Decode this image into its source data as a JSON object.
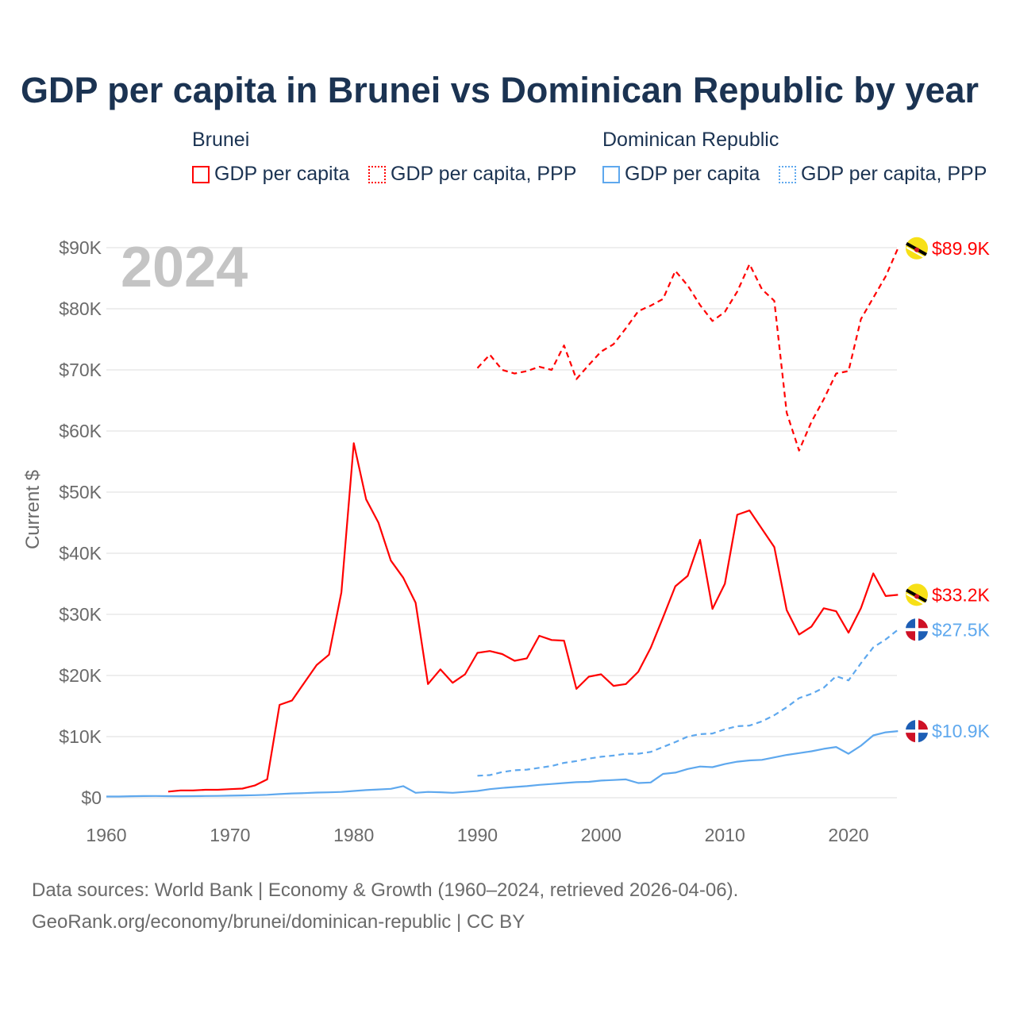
{
  "title": "GDP per capita in Brunei vs Dominican Republic by year",
  "year_watermark": "2024",
  "legend": {
    "groups": [
      {
        "name": "Brunei",
        "items": [
          "GDP per capita",
          "GDP per capita, PPP"
        ]
      },
      {
        "name": "Dominican Republic",
        "items": [
          "GDP per capita",
          "GDP per capita, PPP"
        ]
      }
    ]
  },
  "source_lines": [
    "Data sources: World Bank | Economy & Growth (1960–2024, retrieved 2026-04-06).",
    "GeoRank.org/economy/brunei/dominican-republic | CC BY"
  ],
  "chart_data": {
    "type": "line",
    "title": "GDP per capita in Brunei vs Dominican Republic by year",
    "xlabel": "",
    "ylabel": "Current $",
    "xlim": [
      1960,
      2024
    ],
    "ylim": [
      0,
      90000
    ],
    "x_ticks": [
      1960,
      1970,
      1980,
      1990,
      2000,
      2010,
      2020
    ],
    "y_ticks": [
      0,
      10000,
      20000,
      30000,
      40000,
      50000,
      60000,
      70000,
      80000,
      90000
    ],
    "y_tick_labels": [
      "$0",
      "$10K",
      "$20K",
      "$30K",
      "$40K",
      "$50K",
      "$60K",
      "$70K",
      "$80K",
      "$90K"
    ],
    "grid": true,
    "legend_position": "top",
    "colors": {
      "Brunei": "#ff0000",
      "Dominican Republic": "#5ea8ee"
    },
    "series": [
      {
        "name": "Brunei GDP per capita",
        "country": "Brunei",
        "dash": false,
        "end_label": "$33.2K",
        "start": 1965,
        "values": [
          1000,
          1200,
          1200,
          1300,
          1300,
          1400,
          1500,
          2000,
          3000,
          15200,
          15900,
          18800,
          21700,
          23400,
          33600,
          58000,
          48800,
          45000,
          38800,
          36000,
          31900,
          18600,
          21000,
          18800,
          20200,
          23700,
          24000,
          23500,
          22400,
          22800,
          26500,
          25800,
          25700,
          17800,
          19800,
          20200,
          18300,
          18600,
          20600,
          24500,
          29500,
          34600,
          36300,
          42200,
          30900,
          35000,
          46300,
          47000,
          44000,
          41000,
          30700,
          26700,
          28000,
          31000,
          30500,
          27000,
          31000,
          36700,
          33000,
          33200
        ]
      },
      {
        "name": "Brunei GDP per capita, PPP",
        "country": "Brunei",
        "dash": true,
        "end_label": "$89.9K",
        "start": 1990,
        "values": [
          70300,
          72500,
          70000,
          69400,
          69800,
          70500,
          70000,
          74000,
          68500,
          70800,
          73000,
          74200,
          76800,
          79600,
          80500,
          81600,
          86200,
          83800,
          80600,
          78000,
          79500,
          82800,
          87300,
          83200,
          81300,
          63000,
          56800,
          61500,
          65200,
          69400,
          69800,
          78300,
          81800,
          85300,
          89900
        ]
      },
      {
        "name": "Dominican Republic GDP per capita",
        "country": "Dominican Republic",
        "dash": false,
        "end_label": "$10.9K",
        "start": 1960,
        "values": [
          200,
          200,
          250,
          270,
          280,
          260,
          250,
          260,
          280,
          300,
          340,
          380,
          420,
          480,
          600,
          700,
          750,
          850,
          880,
          950,
          1100,
          1250,
          1350,
          1450,
          1900,
          800,
          950,
          900,
          800,
          950,
          1100,
          1400,
          1600,
          1750,
          1900,
          2100,
          2250,
          2400,
          2550,
          2600,
          2800,
          2900,
          3000,
          2400,
          2500,
          3900,
          4100,
          4700,
          5100,
          5000,
          5500,
          5900,
          6100,
          6200,
          6600,
          7000,
          7300,
          7600,
          8000,
          8300,
          7200,
          8500,
          10200,
          10700,
          10900
        ]
      },
      {
        "name": "Dominican Republic GDP per capita, PPP",
        "country": "Dominican Republic",
        "dash": true,
        "end_label": "$27.5K",
        "start": 1990,
        "values": [
          3600,
          3700,
          4200,
          4500,
          4600,
          4900,
          5200,
          5700,
          6000,
          6400,
          6700,
          6900,
          7200,
          7200,
          7500,
          8300,
          9100,
          10000,
          10400,
          10500,
          11200,
          11700,
          11800,
          12500,
          13500,
          14800,
          16300,
          17000,
          18000,
          19900,
          19200,
          22000,
          24600,
          25900,
          27500
        ]
      }
    ]
  }
}
